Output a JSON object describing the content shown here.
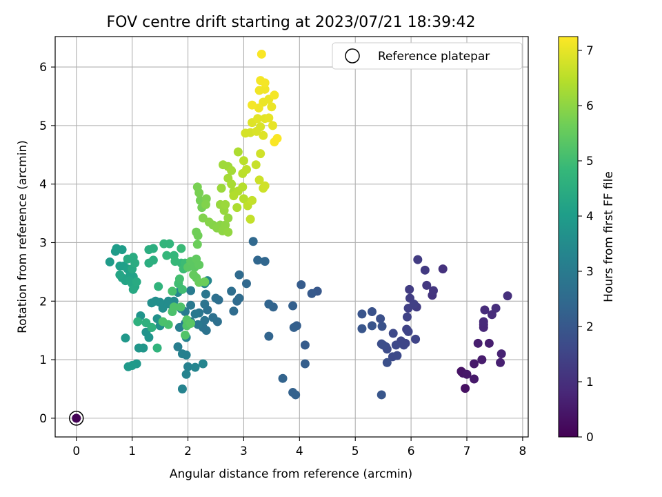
{
  "chart_data": {
    "type": "scatter",
    "title": "FOV centre drift starting at 2023/07/21 18:39:42",
    "xlabel": "Angular distance from reference (arcmin)",
    "ylabel": "Rotation from reference (arcmin)",
    "xlim": [
      -0.38,
      8.1
    ],
    "ylim": [
      -0.32,
      6.52
    ],
    "xticks": [
      "0",
      "1",
      "2",
      "3",
      "4",
      "5",
      "6",
      "7",
      "8"
    ],
    "yticks": [
      "0",
      "1",
      "2",
      "3",
      "4",
      "5",
      "6"
    ],
    "grid": true,
    "legend": {
      "placement": "top-right",
      "label": "Reference platepar"
    },
    "reference_point": {
      "x": 0,
      "y": 0,
      "c": 0
    },
    "colorbar": {
      "label": "Hours from first FF file",
      "range": [
        0,
        7.25
      ],
      "ticks": [
        "0",
        "1",
        "2",
        "3",
        "4",
        "5",
        "6",
        "7"
      ],
      "colormap": "viridis",
      "stops": [
        "#440154",
        "#482878",
        "#3e4989",
        "#31688e",
        "#26828e",
        "#1f9e89",
        "#35b779",
        "#6ece58",
        "#b5de2b",
        "#fde725"
      ]
    },
    "points": [
      [
        0,
        0,
        0.05
      ],
      [
        6.97,
        0.51,
        0.3
      ],
      [
        6.9,
        0.8,
        0.35
      ],
      [
        6.93,
        0.77,
        0.4
      ],
      [
        7.0,
        0.75,
        0.45
      ],
      [
        7.13,
        0.67,
        0.5
      ],
      [
        7.13,
        0.93,
        0.5
      ],
      [
        7.27,
        1.0,
        0.55
      ],
      [
        7.2,
        1.28,
        0.6
      ],
      [
        7.4,
        1.28,
        0.6
      ],
      [
        7.6,
        0.95,
        0.65
      ],
      [
        7.62,
        1.1,
        0.7
      ],
      [
        7.3,
        1.55,
        0.8
      ],
      [
        7.3,
        1.6,
        0.8
      ],
      [
        7.3,
        1.65,
        0.85
      ],
      [
        7.45,
        1.77,
        0.9
      ],
      [
        7.32,
        1.85,
        0.9
      ],
      [
        7.52,
        1.88,
        0.95
      ],
      [
        7.73,
        2.09,
        1.0
      ],
      [
        6.57,
        2.55,
        1.05
      ],
      [
        6.38,
        2.1,
        1.1
      ],
      [
        6.4,
        2.18,
        1.15
      ],
      [
        6.28,
        2.27,
        1.2
      ],
      [
        6.25,
        2.53,
        1.25
      ],
      [
        6.12,
        2.71,
        1.3
      ],
      [
        6.1,
        1.9,
        1.3
      ],
      [
        5.97,
        2.2,
        1.3
      ],
      [
        5.98,
        2.05,
        1.35
      ],
      [
        6.05,
        1.95,
        1.4
      ],
      [
        5.95,
        1.88,
        1.4
      ],
      [
        5.93,
        1.73,
        1.45
      ],
      [
        5.92,
        1.52,
        1.45
      ],
      [
        5.95,
        1.48,
        1.5
      ],
      [
        6.08,
        1.35,
        1.5
      ],
      [
        5.9,
        1.28,
        1.5
      ],
      [
        5.87,
        1.25,
        1.55
      ],
      [
        5.82,
        1.32,
        1.55
      ],
      [
        5.73,
        1.25,
        1.6
      ],
      [
        5.68,
        1.45,
        1.6
      ],
      [
        5.75,
        1.07,
        1.65
      ],
      [
        5.67,
        1.05,
        1.65
      ],
      [
        5.55,
        1.22,
        1.7
      ],
      [
        5.57,
        1.18,
        1.7
      ],
      [
        5.5,
        1.25,
        1.75
      ],
      [
        5.47,
        1.27,
        1.75
      ],
      [
        5.57,
        0.95,
        1.8
      ],
      [
        5.45,
        1.7,
        1.8
      ],
      [
        5.48,
        1.57,
        1.85
      ],
      [
        5.3,
        1.82,
        1.85
      ],
      [
        5.3,
        1.58,
        1.9
      ],
      [
        5.12,
        1.78,
        1.9
      ],
      [
        5.12,
        1.53,
        1.95
      ],
      [
        5.47,
        0.4,
        1.95
      ],
      [
        4.32,
        2.17,
        2.0
      ],
      [
        4.22,
        2.13,
        2.05
      ],
      [
        4.03,
        2.28,
        2.1
      ],
      [
        4.1,
        1.25,
        2.1
      ],
      [
        4.1,
        0.93,
        2.15
      ],
      [
        3.95,
        1.58,
        2.15
      ],
      [
        3.9,
        1.55,
        2.2
      ],
      [
        3.88,
        1.92,
        2.2
      ],
      [
        3.93,
        0.4,
        2.25
      ],
      [
        3.88,
        0.44,
        2.25
      ],
      [
        3.7,
        0.68,
        2.3
      ],
      [
        3.53,
        1.9,
        2.3
      ],
      [
        3.45,
        1.95,
        2.35
      ],
      [
        3.45,
        1.4,
        2.35
      ],
      [
        3.38,
        2.68,
        2.4
      ],
      [
        3.25,
        2.7,
        2.4
      ],
      [
        3.17,
        3.02,
        2.45
      ],
      [
        3.05,
        2.3,
        2.45
      ],
      [
        2.92,
        2.45,
        2.5
      ],
      [
        2.88,
        2.0,
        2.5
      ],
      [
        2.92,
        2.05,
        2.55
      ],
      [
        2.82,
        1.83,
        2.55
      ],
      [
        2.78,
        2.17,
        2.6
      ],
      [
        2.55,
        2.02,
        2.6
      ],
      [
        2.5,
        2.05,
        2.65
      ],
      [
        2.53,
        1.65,
        2.65
      ],
      [
        2.45,
        1.72,
        2.7
      ],
      [
        2.35,
        1.85,
        2.7
      ],
      [
        2.33,
        1.5,
        2.75
      ],
      [
        2.27,
        1.55,
        2.75
      ],
      [
        2.3,
        1.95,
        2.8
      ],
      [
        2.3,
        1.67,
        2.8
      ],
      [
        2.32,
        2.12,
        2.85
      ],
      [
        2.2,
        1.8,
        2.85
      ],
      [
        2.13,
        1.78,
        2.9
      ],
      [
        2.18,
        1.6,
        2.9
      ],
      [
        2.05,
        1.93,
        2.95
      ],
      [
        2.05,
        1.65,
        2.95
      ],
      [
        2.05,
        2.18,
        3.0
      ],
      [
        1.95,
        1.82,
        3.0
      ],
      [
        1.95,
        1.62,
        3.05
      ],
      [
        1.88,
        1.87,
        3.05
      ],
      [
        1.85,
        1.55,
        3.1
      ],
      [
        1.82,
        1.22,
        3.1
      ],
      [
        1.9,
        1.1,
        3.15
      ],
      [
        1.97,
        1.08,
        3.15
      ],
      [
        1.97,
        1.38,
        3.2
      ],
      [
        2.0,
        0.88,
        3.2
      ],
      [
        1.97,
        0.75,
        3.25
      ],
      [
        1.9,
        0.5,
        3.25
      ],
      [
        2.13,
        0.87,
        3.3
      ],
      [
        2.27,
        0.93,
        3.3
      ],
      [
        2.35,
        2.35,
        3.35
      ],
      [
        2.3,
        2.3,
        3.35
      ],
      [
        1.82,
        2.15,
        3.4
      ],
      [
        1.75,
        2.0,
        3.45
      ],
      [
        1.68,
        1.95,
        3.45
      ],
      [
        1.65,
        2.0,
        3.5
      ],
      [
        1.6,
        1.95,
        3.5
      ],
      [
        1.55,
        1.88,
        3.55
      ],
      [
        1.5,
        1.98,
        3.55
      ],
      [
        1.42,
        2.0,
        3.6
      ],
      [
        1.35,
        1.97,
        3.6
      ],
      [
        1.45,
        1.7,
        3.65
      ],
      [
        1.5,
        1.58,
        3.65
      ],
      [
        1.35,
        1.55,
        3.7
      ],
      [
        1.25,
        1.47,
        3.7
      ],
      [
        1.3,
        1.38,
        3.75
      ],
      [
        1.15,
        1.75,
        3.75
      ],
      [
        1.2,
        1.2,
        3.8
      ],
      [
        1.12,
        1.2,
        3.8
      ],
      [
        0.88,
        1.37,
        3.85
      ],
      [
        1.08,
        0.93,
        3.85
      ],
      [
        1.0,
        0.9,
        3.9
      ],
      [
        0.93,
        0.88,
        3.9
      ],
      [
        0.6,
        2.67,
        3.95
      ],
      [
        0.7,
        2.85,
        3.95
      ],
      [
        0.72,
        2.9,
        4.0
      ],
      [
        0.82,
        2.88,
        4.0
      ],
      [
        0.85,
        2.6,
        4.05
      ],
      [
        0.78,
        2.6,
        4.05
      ],
      [
        0.92,
        2.55,
        4.1
      ],
      [
        0.97,
        2.48,
        4.1
      ],
      [
        1.02,
        2.42,
        4.15
      ],
      [
        0.95,
        2.42,
        4.15
      ],
      [
        0.88,
        2.35,
        4.2
      ],
      [
        0.82,
        2.4,
        4.2
      ],
      [
        0.78,
        2.45,
        4.25
      ],
      [
        0.95,
        2.35,
        4.25
      ],
      [
        1.0,
        2.3,
        4.3
      ],
      [
        1.05,
        2.25,
        4.3
      ],
      [
        1.02,
        2.2,
        4.35
      ],
      [
        1.0,
        2.55,
        4.35
      ],
      [
        1.08,
        2.33,
        4.4
      ],
      [
        0.92,
        2.72,
        4.4
      ],
      [
        1.02,
        2.75,
        4.45
      ],
      [
        1.05,
        2.65,
        4.45
      ],
      [
        1.3,
        2.65,
        4.5
      ],
      [
        1.3,
        2.88,
        4.5
      ],
      [
        1.38,
        2.9,
        4.55
      ],
      [
        1.38,
        2.7,
        4.55
      ],
      [
        1.1,
        1.65,
        4.6
      ],
      [
        1.25,
        1.63,
        4.6
      ],
      [
        1.35,
        1.55,
        4.65
      ],
      [
        1.45,
        1.2,
        4.7
      ],
      [
        1.47,
        2.25,
        4.7
      ],
      [
        1.57,
        2.98,
        4.75
      ],
      [
        1.67,
        2.98,
        4.75
      ],
      [
        1.62,
        2.78,
        4.8
      ],
      [
        1.75,
        2.78,
        4.8
      ],
      [
        1.77,
        2.68,
        4.85
      ],
      [
        1.88,
        2.65,
        4.85
      ],
      [
        1.88,
        2.9,
        4.9
      ],
      [
        1.95,
        2.65,
        4.95
      ],
      [
        1.92,
        2.55,
        4.95
      ],
      [
        1.83,
        2.3,
        5.0
      ],
      [
        1.9,
        2.2,
        5.0
      ],
      [
        1.85,
        2.38,
        5.05
      ],
      [
        1.72,
        2.17,
        5.1
      ],
      [
        1.65,
        1.6,
        5.1
      ],
      [
        1.55,
        1.65,
        5.15
      ],
      [
        1.72,
        1.82,
        5.15
      ],
      [
        1.75,
        1.9,
        5.2
      ],
      [
        1.87,
        1.9,
        5.2
      ],
      [
        1.98,
        1.58,
        5.25
      ],
      [
        1.95,
        1.42,
        5.25
      ],
      [
        1.98,
        1.68,
        5.3
      ],
      [
        2.05,
        1.62,
        5.35
      ],
      [
        2.0,
        2.58,
        5.35
      ],
      [
        2.05,
        2.68,
        5.4
      ],
      [
        2.12,
        2.58,
        5.4
      ],
      [
        2.15,
        2.72,
        5.45
      ],
      [
        2.2,
        2.62,
        5.45
      ],
      [
        2.1,
        2.45,
        5.5
      ],
      [
        2.15,
        2.4,
        5.5
      ],
      [
        2.2,
        2.32,
        5.55
      ],
      [
        2.3,
        2.33,
        5.6
      ],
      [
        2.17,
        2.97,
        5.6
      ],
      [
        2.18,
        3.12,
        5.65
      ],
      [
        2.15,
        3.18,
        5.65
      ],
      [
        2.22,
        3.72,
        5.7
      ],
      [
        2.25,
        3.6,
        5.7
      ],
      [
        2.2,
        3.85,
        5.75
      ],
      [
        2.17,
        3.95,
        5.75
      ],
      [
        2.33,
        3.75,
        5.8
      ],
      [
        2.32,
        3.65,
        5.85
      ],
      [
        2.27,
        3.42,
        5.85
      ],
      [
        2.38,
        3.35,
        5.9
      ],
      [
        2.45,
        3.3,
        5.9
      ],
      [
        2.52,
        3.25,
        5.95
      ],
      [
        2.58,
        3.3,
        5.95
      ],
      [
        2.62,
        3.2,
        6.0
      ],
      [
        2.67,
        3.3,
        6.0
      ],
      [
        2.72,
        3.18,
        6.05
      ],
      [
        2.72,
        3.42,
        6.05
      ],
      [
        2.65,
        3.55,
        6.1
      ],
      [
        2.58,
        3.65,
        6.1
      ],
      [
        2.67,
        3.65,
        6.15
      ],
      [
        2.6,
        3.93,
        6.15
      ],
      [
        2.63,
        4.33,
        6.2
      ],
      [
        2.72,
        4.3,
        6.2
      ],
      [
        2.78,
        4.23,
        6.25
      ],
      [
        2.72,
        4.1,
        6.25
      ],
      [
        2.78,
        4.0,
        6.3
      ],
      [
        2.82,
        3.87,
        6.3
      ],
      [
        2.9,
        4.55,
        6.35
      ],
      [
        2.88,
        3.6,
        6.35
      ],
      [
        2.82,
        3.8,
        6.4
      ],
      [
        2.9,
        3.88,
        6.4
      ],
      [
        2.98,
        3.95,
        6.45
      ],
      [
        3.0,
        3.75,
        6.45
      ],
      [
        3.0,
        4.4,
        6.5
      ],
      [
        2.98,
        4.18,
        6.5
      ],
      [
        3.05,
        4.25,
        6.55
      ],
      [
        3.07,
        3.63,
        6.55
      ],
      [
        3.12,
        3.4,
        6.6
      ],
      [
        3.15,
        3.72,
        6.6
      ],
      [
        3.22,
        4.33,
        6.65
      ],
      [
        3.28,
        4.07,
        6.7
      ],
      [
        3.35,
        3.93,
        6.7
      ],
      [
        3.38,
        3.97,
        6.75
      ],
      [
        3.3,
        4.52,
        6.75
      ],
      [
        3.03,
        4.87,
        6.8
      ],
      [
        3.12,
        4.88,
        6.8
      ],
      [
        3.23,
        4.9,
        6.85
      ],
      [
        3.3,
        4.98,
        6.85
      ],
      [
        3.35,
        4.83,
        6.9
      ],
      [
        3.15,
        5.05,
        6.9
      ],
      [
        3.25,
        5.12,
        6.95
      ],
      [
        3.38,
        5.12,
        6.95
      ],
      [
        3.45,
        5.13,
        7.0
      ],
      [
        3.52,
        5.0,
        7.0
      ],
      [
        3.5,
        5.32,
        7.05
      ],
      [
        3.45,
        5.45,
        7.05
      ],
      [
        3.35,
        5.4,
        7.05
      ],
      [
        3.27,
        5.3,
        7.1
      ],
      [
        3.28,
        5.6,
        7.1
      ],
      [
        3.38,
        5.62,
        7.1
      ],
      [
        3.3,
        5.77,
        7.15
      ],
      [
        3.38,
        5.73,
        7.15
      ],
      [
        3.55,
        5.52,
        7.15
      ],
      [
        3.15,
        5.35,
        7.15
      ],
      [
        3.55,
        4.72,
        7.2
      ],
      [
        3.6,
        4.78,
        7.2
      ],
      [
        3.32,
        6.22,
        7.2
      ]
    ]
  }
}
